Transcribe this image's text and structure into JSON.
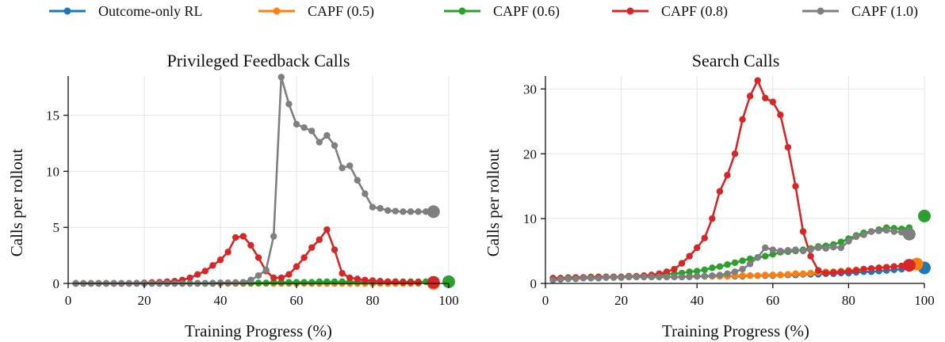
{
  "legend": [
    {
      "name": "Outcome-only RL",
      "color": "#1f77b4"
    },
    {
      "name": "CAPF (0.5)",
      "color": "#ff7f0e"
    },
    {
      "name": "CAPF (0.6)",
      "color": "#2ca02c"
    },
    {
      "name": "CAPF (0.8)",
      "color": "#d62728"
    },
    {
      "name": "CAPF (1.0)",
      "color": "#7f7f7f"
    }
  ],
  "chart_data": [
    {
      "type": "line",
      "title": "Privileged Feedback Calls",
      "xlabel": "Training Progress (%)",
      "ylabel": "Calls per rollout",
      "xlim": [
        0,
        100
      ],
      "ylim": [
        0,
        18.5
      ],
      "xticks": [
        0,
        20,
        40,
        60,
        80,
        100
      ],
      "yticks": [
        0,
        5,
        10,
        15
      ],
      "grid": true,
      "series": [
        {
          "name": "Outcome-only RL",
          "color": "#1f77b4",
          "x": [
            2,
            4,
            6,
            8,
            10,
            12,
            14,
            16,
            18,
            20,
            22,
            24,
            26,
            28,
            30,
            32,
            34,
            36,
            38,
            40,
            42,
            44,
            46,
            48,
            50,
            52,
            54,
            56,
            58,
            60,
            62,
            64,
            66,
            68,
            70,
            72,
            74,
            76,
            78,
            80,
            82,
            84,
            86,
            88,
            90,
            92
          ],
          "y": [
            0,
            0,
            0,
            0,
            0,
            0,
            0,
            0,
            0,
            0,
            0,
            0,
            0,
            0,
            0,
            0,
            0,
            0,
            0,
            0,
            0,
            0,
            0,
            0,
            0,
            0,
            0,
            0,
            0,
            0,
            0,
            0,
            0,
            0,
            0,
            0,
            0,
            0,
            0,
            0,
            0,
            0,
            0,
            0,
            0,
            0
          ],
          "final": {
            "x": 96,
            "y": 0
          }
        },
        {
          "name": "CAPF (0.5)",
          "color": "#ff7f0e",
          "x": [
            2,
            4,
            6,
            8,
            10,
            12,
            14,
            16,
            18,
            20,
            22,
            24,
            26,
            28,
            30,
            32,
            34,
            36,
            38,
            40,
            42,
            44,
            46,
            48,
            50,
            52,
            54,
            56,
            58,
            60,
            62,
            64,
            66,
            68,
            70,
            72,
            74,
            76,
            78,
            80,
            82,
            84,
            86,
            88,
            90,
            92
          ],
          "y": [
            0,
            0,
            0,
            0,
            0,
            0,
            0,
            0,
            0,
            0,
            0,
            0,
            0,
            0,
            0,
            0,
            0,
            0,
            0,
            0,
            0,
            0,
            0,
            0,
            0,
            0,
            0,
            0,
            0,
            0,
            0,
            0,
            0,
            0,
            0,
            0,
            0,
            0,
            0,
            0,
            0,
            0,
            0,
            0,
            0,
            0
          ],
          "final": {
            "x": 96,
            "y": 0
          }
        },
        {
          "name": "CAPF (0.6)",
          "color": "#2ca02c",
          "x": [
            2,
            4,
            6,
            8,
            10,
            12,
            14,
            16,
            18,
            20,
            22,
            24,
            26,
            28,
            30,
            32,
            34,
            36,
            38,
            40,
            42,
            44,
            46,
            48,
            50,
            52,
            54,
            56,
            58,
            60,
            62,
            64,
            66,
            68,
            70,
            72,
            74,
            76,
            78,
            80,
            82,
            84,
            86,
            88,
            90,
            92,
            94
          ],
          "y": [
            0,
            0,
            0,
            0,
            0,
            0,
            0,
            0,
            0,
            0,
            0,
            0,
            0,
            0,
            0,
            0,
            0,
            0,
            0,
            0.05,
            0.05,
            0.05,
            0.05,
            0.05,
            0.05,
            0.05,
            0.1,
            0.1,
            0.1,
            0.1,
            0.1,
            0.1,
            0.15,
            0.15,
            0.15,
            0.15,
            0.15,
            0.15,
            0.15,
            0.15,
            0.15,
            0.15,
            0.15,
            0.15,
            0.15,
            0.15,
            0.15
          ],
          "final": {
            "x": 100,
            "y": 0.15
          }
        },
        {
          "name": "CAPF (0.8)",
          "color": "#d62728",
          "x": [
            2,
            4,
            6,
            8,
            10,
            12,
            14,
            16,
            18,
            20,
            22,
            24,
            26,
            28,
            30,
            32,
            34,
            36,
            38,
            40,
            42,
            44,
            46,
            48,
            50,
            52,
            54,
            56,
            58,
            60,
            62,
            64,
            66,
            68,
            70,
            72,
            74,
            76,
            78,
            80,
            82,
            84,
            86,
            88,
            90,
            92
          ],
          "y": [
            0,
            0,
            0,
            0,
            0,
            0,
            0,
            0,
            0.02,
            0.05,
            0.08,
            0.1,
            0.15,
            0.2,
            0.3,
            0.5,
            0.8,
            1.1,
            1.6,
            2.1,
            2.8,
            4.1,
            4.2,
            3.4,
            2.3,
            1.1,
            0.5,
            0.5,
            0.8,
            1.5,
            2.3,
            3.2,
            3.9,
            4.8,
            3.0,
            0.9,
            0.5,
            0.4,
            0.3,
            0.25,
            0.2,
            0.15,
            0.15,
            0.1,
            0.1,
            0.1
          ],
          "final": {
            "x": 96,
            "y": 0.1
          }
        },
        {
          "name": "CAPF (1.0)",
          "color": "#7f7f7f",
          "x": [
            2,
            4,
            6,
            8,
            10,
            12,
            14,
            16,
            18,
            20,
            22,
            24,
            26,
            28,
            30,
            32,
            34,
            36,
            38,
            40,
            42,
            44,
            46,
            48,
            50,
            52,
            54,
            56,
            58,
            60,
            62,
            64,
            66,
            68,
            70,
            72,
            74,
            76,
            78,
            80,
            82,
            84,
            86,
            88,
            90,
            92,
            94
          ],
          "y": [
            0,
            0,
            0,
            0,
            0,
            0,
            0,
            0,
            0,
            0,
            0,
            0,
            0,
            0,
            0,
            0,
            0.02,
            0.02,
            0.03,
            0.05,
            0.05,
            0.08,
            0.1,
            0.3,
            0.7,
            1.2,
            4.2,
            18.4,
            16.0,
            14.2,
            13.9,
            13.6,
            12.6,
            13.2,
            12.3,
            10.3,
            10.5,
            9.2,
            8.0,
            6.8,
            6.7,
            6.5,
            6.45,
            6.4,
            6.4,
            6.4,
            6.4
          ],
          "final": {
            "x": 96,
            "y": 6.4
          }
        }
      ]
    },
    {
      "type": "line",
      "title": "Search Calls",
      "xlabel": "Training Progress (%)",
      "ylabel": "Calls per rollout",
      "xlim": [
        0,
        100
      ],
      "ylim": [
        0,
        32
      ],
      "xticks": [
        0,
        20,
        40,
        60,
        80,
        100
      ],
      "yticks": [
        0,
        10,
        20,
        30
      ],
      "grid": true,
      "series": [
        {
          "name": "Outcome-only RL",
          "color": "#1f77b4",
          "x": [
            2,
            4,
            6,
            8,
            10,
            12,
            14,
            16,
            18,
            20,
            22,
            24,
            26,
            28,
            30,
            32,
            34,
            36,
            38,
            40,
            42,
            44,
            46,
            48,
            50,
            52,
            54,
            56,
            58,
            60,
            62,
            64,
            66,
            68,
            70,
            72,
            74,
            76,
            78,
            80,
            82,
            84,
            86,
            88,
            90,
            92,
            94,
            96
          ],
          "y": [
            0.8,
            0.8,
            0.8,
            0.9,
            0.9,
            0.9,
            0.9,
            1.0,
            1.0,
            1.0,
            1.0,
            1.0,
            1.0,
            1.0,
            1.0,
            1.0,
            1.0,
            1.0,
            1.1,
            1.1,
            1.1,
            1.1,
            1.1,
            1.1,
            1.1,
            1.1,
            1.2,
            1.2,
            1.2,
            1.2,
            1.3,
            1.3,
            1.3,
            1.4,
            1.4,
            1.4,
            1.5,
            1.5,
            1.6,
            1.6,
            1.7,
            1.8,
            1.8,
            1.9,
            2.0,
            2.1,
            2.2,
            2.3
          ],
          "final": {
            "x": 100,
            "y": 2.4
          }
        },
        {
          "name": "CAPF (0.5)",
          "color": "#ff7f0e",
          "x": [
            2,
            4,
            6,
            8,
            10,
            12,
            14,
            16,
            18,
            20,
            22,
            24,
            26,
            28,
            30,
            32,
            34,
            36,
            38,
            40,
            42,
            44,
            46,
            48,
            50,
            52,
            54,
            56,
            58,
            60,
            62,
            64,
            66,
            68,
            70,
            72,
            74,
            76,
            78,
            80,
            82,
            84,
            86,
            88,
            90,
            92,
            94
          ],
          "y": [
            0.8,
            0.8,
            0.9,
            0.9,
            0.9,
            1.0,
            1.0,
            1.0,
            1.0,
            1.0,
            1.0,
            1.0,
            1.0,
            1.0,
            1.0,
            1.0,
            1.0,
            1.0,
            1.1,
            1.1,
            1.1,
            1.1,
            1.1,
            1.1,
            1.2,
            1.2,
            1.2,
            1.2,
            1.3,
            1.3,
            1.3,
            1.4,
            1.5,
            1.5,
            1.6,
            1.7,
            1.8,
            1.8,
            1.9,
            2.0,
            2.1,
            2.2,
            2.3,
            2.4,
            2.5,
            2.6,
            2.7
          ],
          "final": {
            "x": 98,
            "y": 3.0
          }
        },
        {
          "name": "CAPF (0.6)",
          "color": "#2ca02c",
          "x": [
            2,
            4,
            6,
            8,
            10,
            12,
            14,
            16,
            18,
            20,
            22,
            24,
            26,
            28,
            30,
            32,
            34,
            36,
            38,
            40,
            42,
            44,
            46,
            48,
            50,
            52,
            54,
            56,
            58,
            60,
            62,
            64,
            66,
            68,
            70,
            72,
            74,
            76,
            78,
            80,
            82,
            84,
            86,
            88,
            90,
            92,
            94,
            96
          ],
          "y": [
            0.8,
            0.8,
            0.9,
            0.9,
            0.9,
            1.0,
            1.0,
            1.0,
            1.0,
            1.0,
            1.1,
            1.1,
            1.2,
            1.2,
            1.3,
            1.4,
            1.5,
            1.6,
            1.8,
            1.9,
            2.1,
            2.4,
            2.6,
            2.9,
            3.2,
            3.5,
            3.8,
            4.0,
            4.2,
            4.5,
            4.8,
            4.9,
            5.0,
            5.2,
            5.4,
            5.7,
            5.8,
            6.0,
            6.4,
            6.9,
            7.4,
            7.8,
            8.0,
            8.3,
            8.6,
            8.5,
            8.4,
            8.6
          ],
          "final": {
            "x": 100,
            "y": 10.4
          }
        },
        {
          "name": "CAPF (0.8)",
          "color": "#d62728",
          "x": [
            2,
            4,
            6,
            8,
            10,
            12,
            14,
            16,
            18,
            20,
            22,
            24,
            26,
            28,
            30,
            32,
            34,
            36,
            38,
            40,
            42,
            44,
            46,
            48,
            50,
            52,
            54,
            56,
            58,
            60,
            62,
            64,
            66,
            68,
            70,
            72,
            74,
            76,
            78,
            80,
            82,
            84,
            86,
            88,
            90,
            92,
            94
          ],
          "y": [
            0.8,
            0.8,
            0.8,
            0.9,
            0.9,
            0.9,
            1.0,
            1.0,
            1.0,
            1.0,
            1.1,
            1.1,
            1.2,
            1.3,
            1.5,
            1.8,
            2.2,
            3.1,
            4.2,
            5.5,
            7.0,
            10.0,
            14.2,
            16.7,
            20.0,
            25.3,
            28.9,
            31.3,
            28.6,
            28.0,
            26.0,
            21.0,
            15.0,
            8.0,
            4.2,
            2.0,
            1.6,
            1.7,
            1.8,
            1.9,
            2.0,
            2.2,
            2.3,
            2.4,
            2.5,
            2.6,
            2.7
          ],
          "final": {
            "x": 96,
            "y": 2.8
          }
        },
        {
          "name": "CAPF (1.0)",
          "color": "#7f7f7f",
          "x": [
            2,
            4,
            6,
            8,
            10,
            12,
            14,
            16,
            18,
            20,
            22,
            24,
            26,
            28,
            30,
            32,
            34,
            36,
            38,
            40,
            42,
            44,
            46,
            48,
            50,
            52,
            54,
            56,
            58,
            60,
            62,
            64,
            66,
            68,
            70,
            72,
            74,
            76,
            78,
            80,
            82,
            84,
            86,
            88,
            90,
            92,
            94
          ],
          "y": [
            0.5,
            0.6,
            0.7,
            0.7,
            0.8,
            0.8,
            0.8,
            0.9,
            0.9,
            0.9,
            1.0,
            1.0,
            1.0,
            1.0,
            1.0,
            1.0,
            1.0,
            1.0,
            1.0,
            1.1,
            1.1,
            1.2,
            1.3,
            1.5,
            1.8,
            2.2,
            3.0,
            4.0,
            5.5,
            5.2,
            5.0,
            5.1,
            5.2,
            5.0,
            5.2,
            5.5,
            5.4,
            5.6,
            5.5,
            6.5,
            7.2,
            7.5,
            8.0,
            8.1,
            8.2,
            8.0,
            7.9
          ],
          "final": {
            "x": 96,
            "y": 7.6
          }
        }
      ]
    }
  ]
}
